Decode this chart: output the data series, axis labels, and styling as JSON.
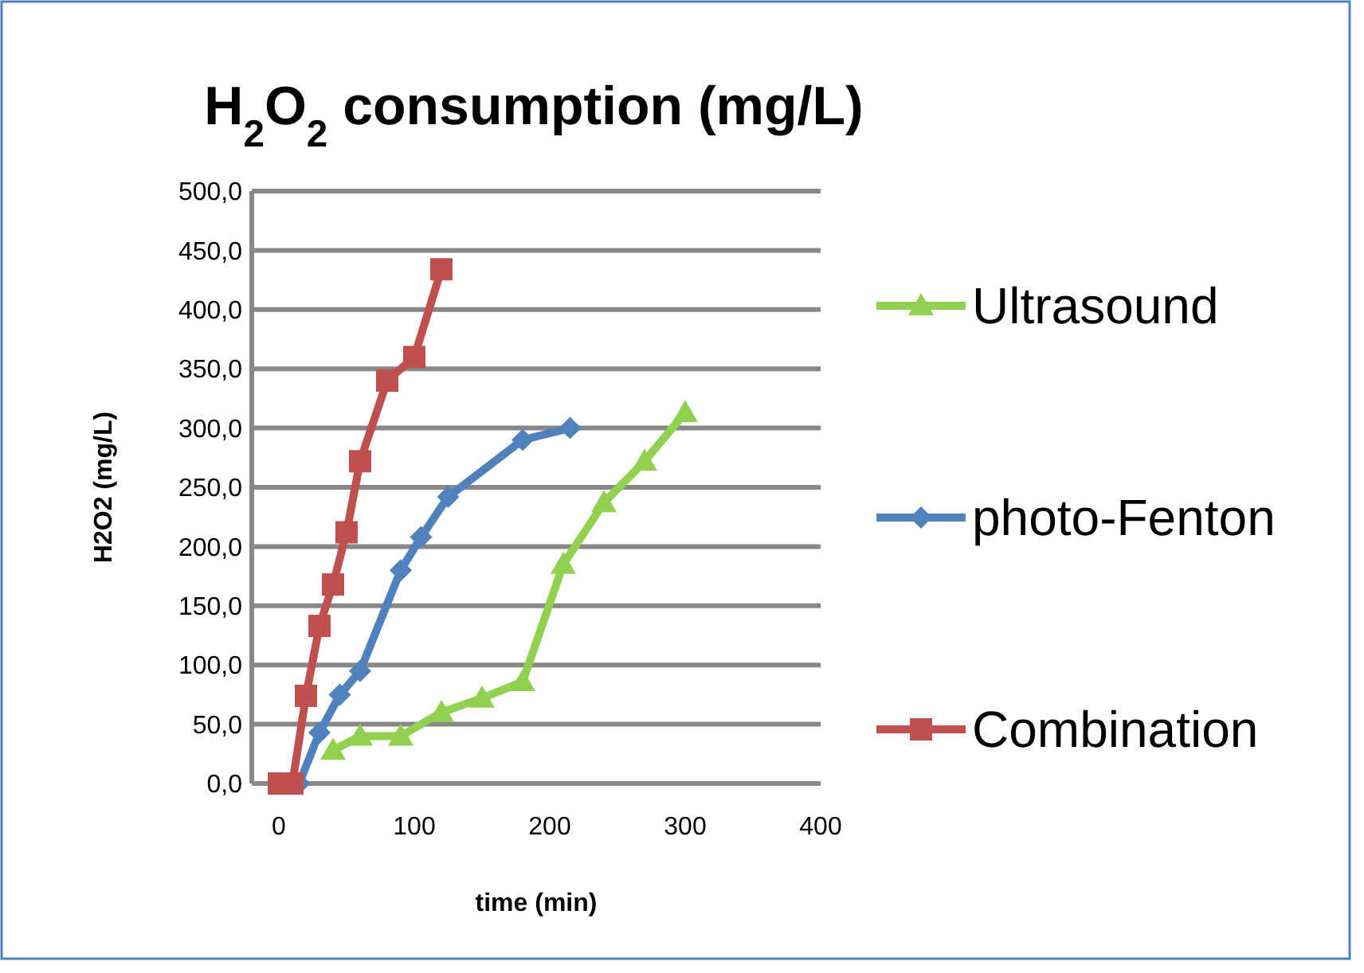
{
  "chart_data": {
    "type": "line",
    "title": "H$_{2}$O$_{2}$ consumption (mg/L)",
    "xlabel": "time (min)",
    "ylabel": "H2O2 (mg/L)",
    "xlim": [
      -20,
      400
    ],
    "xticks": [
      0,
      100,
      200,
      300,
      400
    ],
    "ylim": [
      0,
      500
    ],
    "yticks": [
      {
        "value": 0,
        "label": "0,0"
      },
      {
        "value": 50,
        "label": "50,0"
      },
      {
        "value": 100,
        "label": "100,0"
      },
      {
        "value": 150,
        "label": "150,0"
      },
      {
        "value": 200,
        "label": "200,0"
      },
      {
        "value": 250,
        "label": "250,0"
      },
      {
        "value": 300,
        "label": "300,0"
      },
      {
        "value": 350,
        "label": "350,0"
      },
      {
        "value": 400,
        "label": "400,0"
      },
      {
        "value": 450,
        "label": "450,0"
      },
      {
        "value": 500,
        "label": "500,0"
      }
    ],
    "grid": "y",
    "legend": "right",
    "series": [
      {
        "name": "Ultrasound",
        "color": "#92d050",
        "marker": "triangle",
        "x": [
          40,
          60,
          90,
          120,
          150,
          180,
          210,
          240,
          270,
          300
        ],
        "values": [
          28,
          40,
          40,
          60,
          72,
          86,
          185,
          237,
          272,
          313
        ]
      },
      {
        "name": "photo-Fenton",
        "color": "#4f81bd",
        "marker": "diamond",
        "x": [
          15,
          30,
          45,
          60,
          90,
          105,
          125,
          180,
          215
        ],
        "values": [
          0,
          43,
          75,
          95,
          180,
          208,
          242,
          290,
          300
        ]
      },
      {
        "name": "Combination",
        "color": "#c0504d",
        "marker": "square",
        "x": [
          0,
          10,
          20,
          30,
          40,
          50,
          60,
          80,
          100,
          120
        ],
        "values": [
          0,
          0,
          74,
          133,
          168,
          212,
          272,
          340,
          360,
          434
        ]
      }
    ]
  }
}
